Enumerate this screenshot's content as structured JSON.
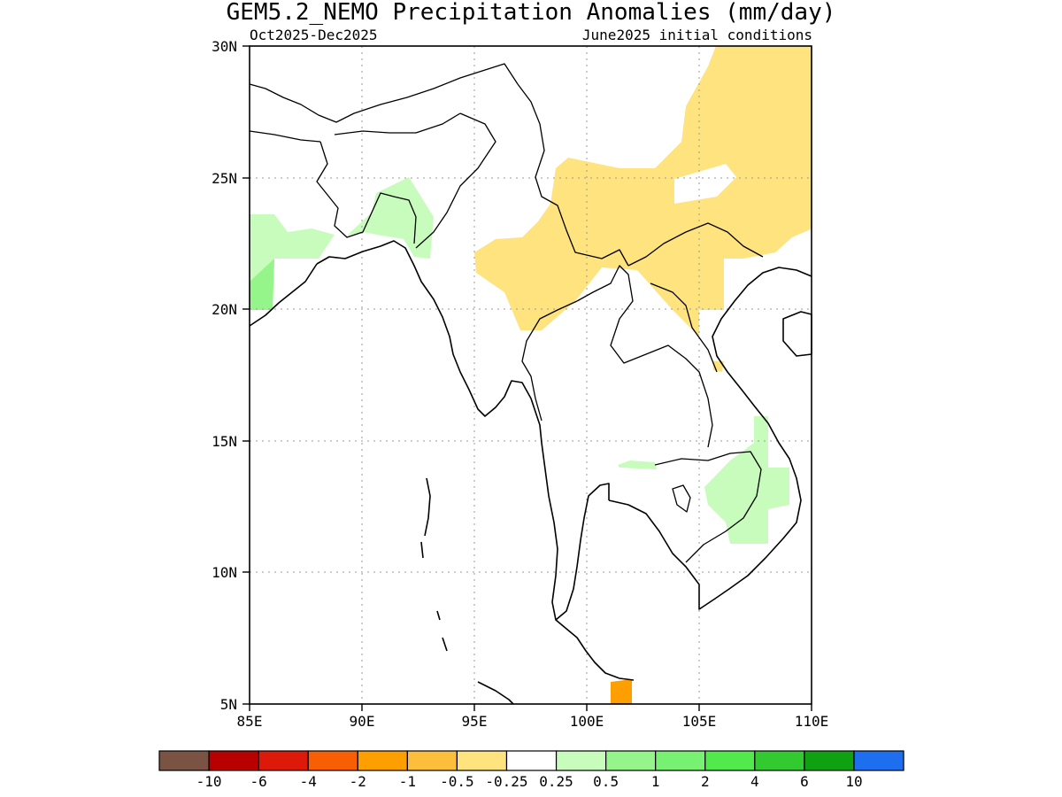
{
  "title": "GEM5.2_NEMO Precipitation Anomalies (mm/day)",
  "subtitle_left": "Oct2025-Dec2025",
  "subtitle_right": "June2025 initial conditions",
  "lon_ticks": [
    "85E",
    "90E",
    "95E",
    "100E",
    "105E",
    "110E"
  ],
  "lat_ticks": [
    "5N",
    "10N",
    "15N",
    "20N",
    "25N",
    "30N"
  ],
  "extent": {
    "lon": [
      85,
      110
    ],
    "lat": [
      5,
      30
    ]
  },
  "colorbar": {
    "colors": [
      "#7b5345",
      "#b80000",
      "#dd1a0a",
      "#f85f05",
      "#fd9f00",
      "#fdbf3b",
      "#fee37f",
      "#ffffff",
      "#c8fcbc",
      "#96f58a",
      "#78f071",
      "#52e94c",
      "#33c931",
      "#10a112",
      "#1e6ff0"
    ],
    "labels": [
      "-10",
      "-6",
      "-4",
      "-2",
      "-1",
      "-0.5",
      "-0.25",
      "0.25",
      "0.5",
      "1",
      "2",
      "4",
      "6",
      "10"
    ]
  }
}
